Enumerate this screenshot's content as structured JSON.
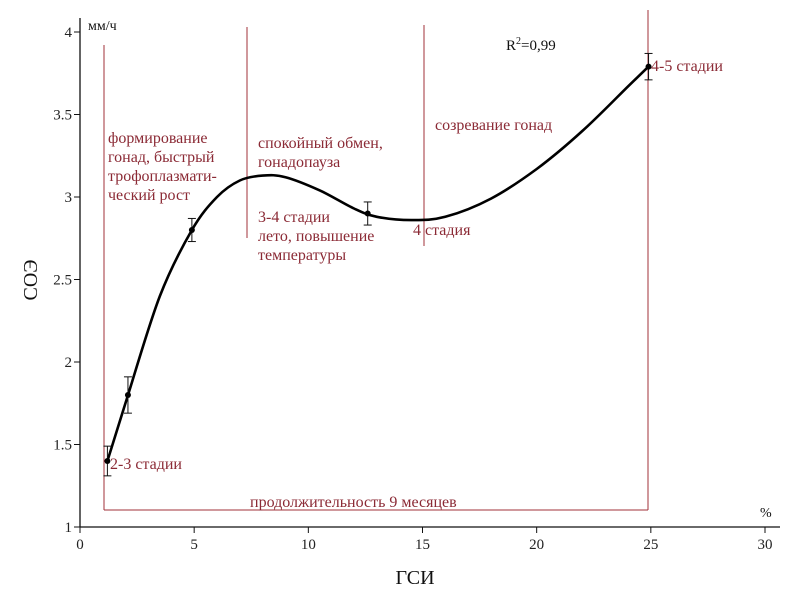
{
  "chart_data": {
    "type": "line",
    "xlabel": "ГСИ",
    "ylabel": "СОЭ",
    "x_unit": "%",
    "y_unit": "мм/ч",
    "xlim": [
      0,
      30
    ],
    "ylim": [
      1,
      4
    ],
    "x_ticks": [
      0,
      5,
      10,
      15,
      20,
      25,
      30
    ],
    "y_ticks": [
      1,
      1.5,
      2,
      2.5,
      3,
      3.5,
      4
    ],
    "x_tick_labels": [
      "0",
      "5",
      "10",
      "15",
      "20",
      "25",
      "30"
    ],
    "y_tick_labels": [
      "1",
      "1.5",
      "2",
      "2.5",
      "3",
      "3.5",
      "4"
    ],
    "r_squared": {
      "prefix": "R",
      "exponent": "2",
      "value": "=0,99"
    },
    "points": [
      {
        "x": 1.2,
        "y": 1.4,
        "err": 0.09
      },
      {
        "x": 2.1,
        "y": 1.8,
        "err": 0.11
      },
      {
        "x": 4.9,
        "y": 2.8,
        "err": 0.07
      },
      {
        "x": 12.6,
        "y": 2.9,
        "err": 0.07
      },
      {
        "x": 24.9,
        "y": 3.79,
        "err": 0.08
      }
    ],
    "fit_curve": {
      "x": [
        1.2,
        2.1,
        3.5,
        4.9,
        6.0,
        7.0,
        8.0,
        9.0,
        10.5,
        12.0,
        13.0,
        14.5,
        16.0,
        18.0,
        20.0,
        22.0,
        24.0,
        24.9
      ],
      "y": [
        1.4,
        1.8,
        2.4,
        2.8,
        3.0,
        3.1,
        3.13,
        3.12,
        3.04,
        2.93,
        2.88,
        2.86,
        2.88,
        2.99,
        3.17,
        3.4,
        3.67,
        3.79
      ]
    },
    "guide_lines_color": "#a0303a",
    "annotation_color": "#8b2a35",
    "annotations": [
      {
        "lines": [
          "формирование",
          "гонад, быстрый",
          "трофоплазмати-",
          "ческий рост"
        ]
      },
      {
        "lines": [
          "спокойный обмен,",
          "гонадопауза"
        ]
      },
      {
        "lines": [
          "созревание гонад"
        ]
      },
      {
        "lines": [
          "3-4 стадии",
          "лето, повышение",
          "температуры"
        ]
      },
      {
        "lines": [
          "4 стадия"
        ]
      },
      {
        "lines": [
          "2-3 стадии"
        ]
      },
      {
        "lines": [
          "4-5 стадии"
        ]
      },
      {
        "lines": [
          "продолжительность 9 месяцев"
        ]
      }
    ]
  }
}
